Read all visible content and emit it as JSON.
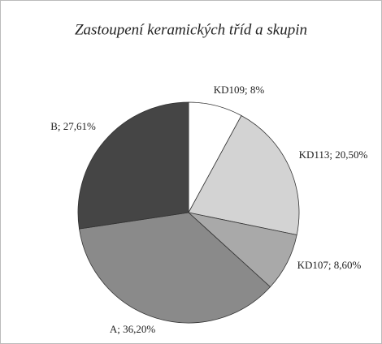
{
  "chart_data": {
    "type": "pie",
    "title": "Zastoupení keramických tříd a skupin",
    "values": [
      8,
      20.5,
      8.6,
      36.2,
      27.61
    ],
    "value_labels": [
      "KD109; 8%",
      "KD113; 20,50%",
      "KD107; 8,60%",
      "A; 36,20%",
      "B; 27,61%"
    ],
    "colors": [
      "#ffffff",
      "#d3d3d3",
      "#a9a9a9",
      "#8a8a8a",
      "#454545"
    ]
  }
}
